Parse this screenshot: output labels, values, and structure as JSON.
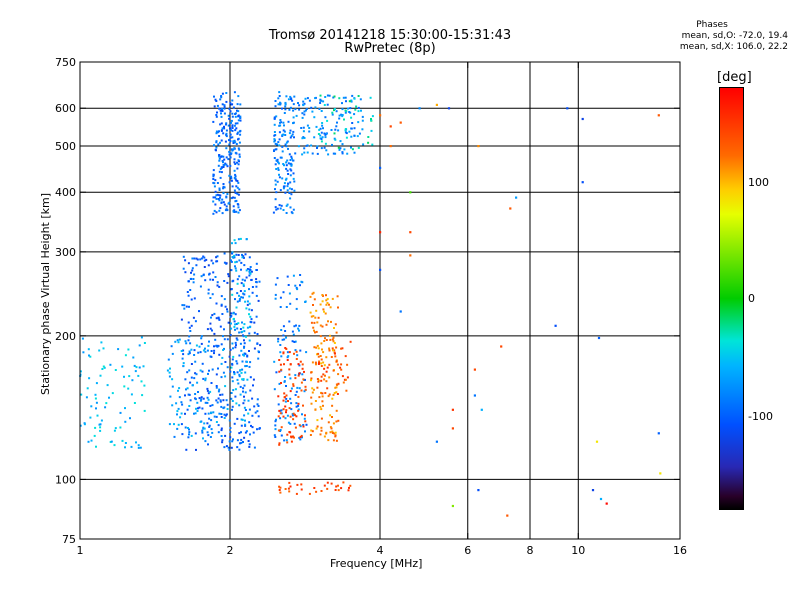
{
  "header": {
    "title_line1": "Tromsø 20141218 15:30:00-15:31:43",
    "title_line2": "RwPretec (8p)"
  },
  "info": {
    "heading": "Phases",
    "line_o": "mean, sd,O: -72.0, 19.4",
    "line_x": "mean, sd,X: 106.0, 22.2"
  },
  "colorbar": {
    "unit": "[deg]",
    "ticks": [
      "100",
      "0",
      "-100"
    ],
    "range": [
      -180,
      180
    ]
  },
  "chart_data": {
    "type": "scatter",
    "title": "Tromsø 20141218 15:30:00-15:31:43",
    "subtitle": "RwPretec (8p)",
    "xlabel": "Frequency [MHz]",
    "ylabel": "Stationary phase Virtual Height [km]",
    "x_scale": "log",
    "y_scale": "log",
    "xlim": [
      1,
      16
    ],
    "ylim": [
      75,
      750
    ],
    "x_ticks": [
      "1",
      "2",
      "4",
      "6",
      "8",
      "10",
      "16"
    ],
    "x_tick_values": [
      1,
      2,
      4,
      6,
      8,
      10,
      16
    ],
    "y_ticks": [
      "75",
      "100",
      "200",
      "300",
      "400",
      "500",
      "600",
      "750"
    ],
    "y_tick_values": [
      75,
      100,
      200,
      300,
      400,
      500,
      600,
      750
    ],
    "grid": true,
    "color_encoding": "phase [deg]",
    "clusters": [
      {
        "f": [
          1.85,
          2.1
        ],
        "h": [
          360,
          650
        ],
        "phase": -95,
        "n": 260
      },
      {
        "f": [
          2.45,
          2.7
        ],
        "h": [
          360,
          650
        ],
        "phase": -85,
        "n": 160
      },
      {
        "f": [
          2.7,
          3.7
        ],
        "h": [
          480,
          640
        ],
        "phase": -80,
        "n": 140
      },
      {
        "f": [
          3.0,
          3.9
        ],
        "h": [
          490,
          640
        ],
        "phase": -30,
        "n": 40
      },
      {
        "f": [
          1.6,
          2.3
        ],
        "h": [
          115,
          300
        ],
        "phase": -100,
        "n": 420
      },
      {
        "f": [
          1.5,
          2.0
        ],
        "h": [
          120,
          200
        ],
        "phase": -70,
        "n": 100
      },
      {
        "f": [
          2.0,
          2.2
        ],
        "h": [
          130,
          320
        ],
        "phase": -60,
        "n": 90
      },
      {
        "f": [
          2.45,
          2.85
        ],
        "h": [
          120,
          270
        ],
        "phase": -85,
        "n": 120
      },
      {
        "f": [
          1.0,
          1.35
        ],
        "h": [
          115,
          200
        ],
        "phase": -55,
        "n": 90
      },
      {
        "f": [
          2.5,
          2.85
        ],
        "h": [
          118,
          190
        ],
        "phase": 145,
        "n": 80
      },
      {
        "f": [
          2.9,
          3.3
        ],
        "h": [
          120,
          250
        ],
        "phase": 110,
        "n": 150
      },
      {
        "f": [
          3.0,
          3.5
        ],
        "h": [
          150,
          200
        ],
        "phase": 135,
        "n": 40
      },
      {
        "f": [
          2.5,
          3.5
        ],
        "h": [
          93,
          99
        ],
        "phase": 140,
        "n": 30
      }
    ],
    "scattered_points": [
      {
        "x": 4.0,
        "y": 580,
        "phase": 120
      },
      {
        "x": 4.2,
        "y": 550,
        "phase": 140
      },
      {
        "x": 4.4,
        "y": 560,
        "phase": 130
      },
      {
        "x": 4.8,
        "y": 600,
        "phase": -80
      },
      {
        "x": 5.2,
        "y": 610,
        "phase": 100
      },
      {
        "x": 5.5,
        "y": 600,
        "phase": -120
      },
      {
        "x": 4.0,
        "y": 450,
        "phase": -100
      },
      {
        "x": 4.2,
        "y": 500,
        "phase": 120
      },
      {
        "x": 4.6,
        "y": 400,
        "phase": 20
      },
      {
        "x": 6.3,
        "y": 500,
        "phase": 110
      },
      {
        "x": 7.5,
        "y": 390,
        "phase": -70
      },
      {
        "x": 7.3,
        "y": 370,
        "phase": 130
      },
      {
        "x": 4.0,
        "y": 330,
        "phase": 160
      },
      {
        "x": 4.6,
        "y": 330,
        "phase": 140
      },
      {
        "x": 4.0,
        "y": 275,
        "phase": -110
      },
      {
        "x": 4.6,
        "y": 295,
        "phase": 120
      },
      {
        "x": 4.4,
        "y": 225,
        "phase": -90
      },
      {
        "x": 7.0,
        "y": 190,
        "phase": 140
      },
      {
        "x": 9.0,
        "y": 210,
        "phase": -110
      },
      {
        "x": 6.2,
        "y": 170,
        "phase": 140
      },
      {
        "x": 6.2,
        "y": 150,
        "phase": -90
      },
      {
        "x": 5.6,
        "y": 140,
        "phase": 150
      },
      {
        "x": 6.4,
        "y": 140,
        "phase": -60
      },
      {
        "x": 5.2,
        "y": 120,
        "phase": -90
      },
      {
        "x": 5.6,
        "y": 128,
        "phase": 140
      },
      {
        "x": 6.3,
        "y": 95,
        "phase": -110
      },
      {
        "x": 5.6,
        "y": 88,
        "phase": 40
      },
      {
        "x": 7.2,
        "y": 84,
        "phase": 130
      },
      {
        "x": 10.7,
        "y": 95,
        "phase": -120
      },
      {
        "x": 11.1,
        "y": 91,
        "phase": -60
      },
      {
        "x": 11.4,
        "y": 89,
        "phase": 175
      },
      {
        "x": 10.9,
        "y": 120,
        "phase": 80
      },
      {
        "x": 9.5,
        "y": 600,
        "phase": -110
      },
      {
        "x": 10.2,
        "y": 570,
        "phase": -120
      },
      {
        "x": 10.2,
        "y": 420,
        "phase": -110
      },
      {
        "x": 14.5,
        "y": 580,
        "phase": 130
      },
      {
        "x": 14.5,
        "y": 125,
        "phase": -100
      },
      {
        "x": 14.6,
        "y": 103,
        "phase": 80
      },
      {
        "x": 11.0,
        "y": 198,
        "phase": -100
      }
    ]
  }
}
